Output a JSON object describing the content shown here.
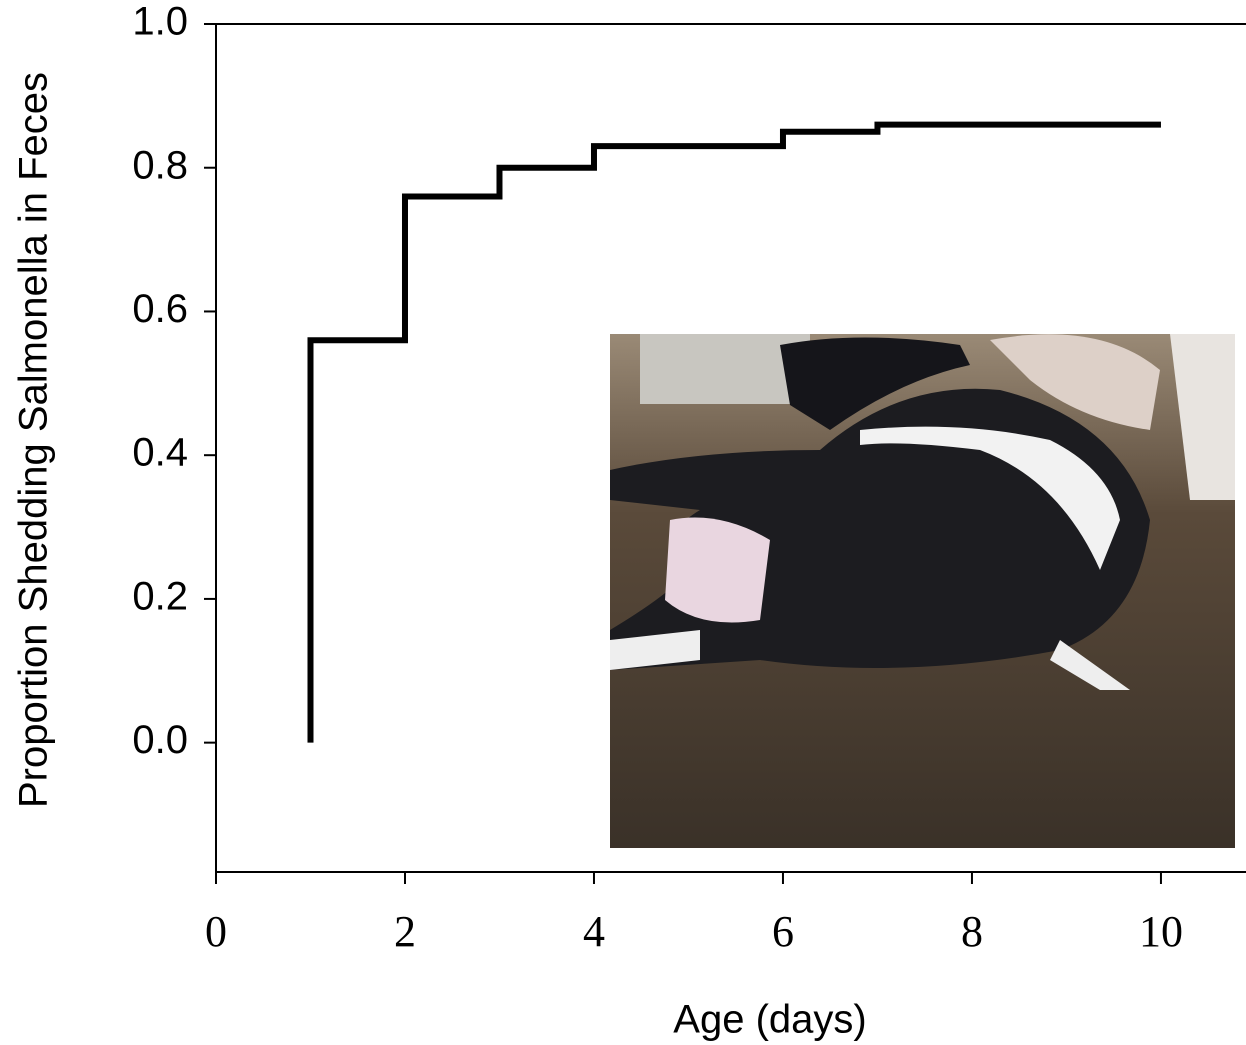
{
  "chart_data": {
    "type": "step",
    "x_label": "Age (days)",
    "y_label": "Proportion Shedding Salmonella in Feces",
    "x": [
      1,
      1,
      2,
      3,
      4,
      6,
      7,
      10
    ],
    "series": [
      {
        "color": "#000000",
        "values": [
          0,
          0.56,
          0.76,
          0.8,
          0.83,
          0.85,
          0.86,
          0.86
        ]
      }
    ],
    "xlim": [
      0,
      10.9
    ],
    "ylim": [
      -0.18,
      1.0
    ],
    "xticks": [
      0,
      2,
      4,
      6,
      8,
      10
    ],
    "yticks": [
      {
        "value": 0,
        "label": "0.0"
      },
      {
        "value": 0.2,
        "label": "0.2"
      },
      {
        "value": 0.4,
        "label": "0.4"
      },
      {
        "value": 0.6,
        "label": "0.6"
      },
      {
        "value": 0.8,
        "label": "0.8"
      },
      {
        "value": 1.0,
        "label": "1.0"
      }
    ]
  }
}
